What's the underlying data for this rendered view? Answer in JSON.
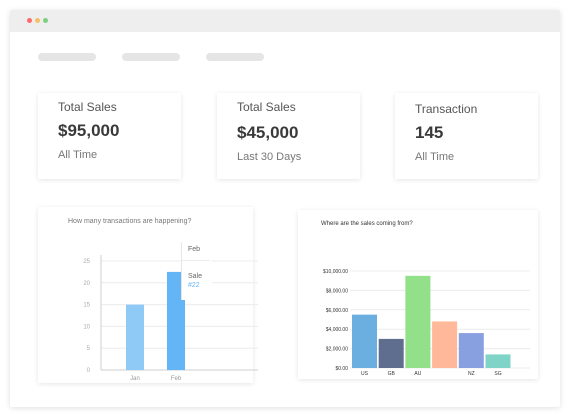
{
  "window": {
    "dots": [
      {
        "name": "close",
        "color": "#ff6b6b"
      },
      {
        "name": "minimize",
        "color": "#f6c165"
      },
      {
        "name": "maximize",
        "color": "#7ed07e"
      }
    ]
  },
  "stats": [
    {
      "title": "Total Sales",
      "value": "$95,000",
      "sub": "All Time"
    },
    {
      "title": "Total Sales",
      "value": "$45,000",
      "sub": "Last 30 Days"
    },
    {
      "title": "Transaction",
      "value": "145",
      "sub": "All Time"
    }
  ],
  "transactions_chart": {
    "title": "How many transactions are happening?",
    "tooltip": {
      "header": "Feb",
      "label": "Sale",
      "value": "#22"
    },
    "chart_data": {
      "type": "bar",
      "categories": [
        "Jan",
        "Feb"
      ],
      "values": [
        15,
        22.5
      ],
      "ylim": [
        0,
        25
      ],
      "yticks": [
        "0",
        "5",
        "10",
        "15",
        "20",
        "25"
      ],
      "grid": true,
      "colors": [
        "#8fcaf7",
        "#64b5f6"
      ]
    }
  },
  "sales_chart": {
    "title": "Where are the sales coming from?",
    "chart_data": {
      "type": "bar",
      "categories": [
        "US",
        "GB",
        "AU",
        "",
        "NZ",
        "SG"
      ],
      "values": [
        5500,
        3000,
        9500,
        4800,
        3600,
        1400
      ],
      "ylim": [
        0,
        10000
      ],
      "yticks": [
        "$0.00",
        "$2,000.00",
        "$4,000.00",
        "$6,000.00",
        "$8,000.00",
        "$10,000.00"
      ],
      "grid": true,
      "colors": [
        "#6aafe0",
        "#5f6e8f",
        "#92e08a",
        "#ffb899",
        "#889fe0",
        "#7fd3c7"
      ]
    }
  }
}
